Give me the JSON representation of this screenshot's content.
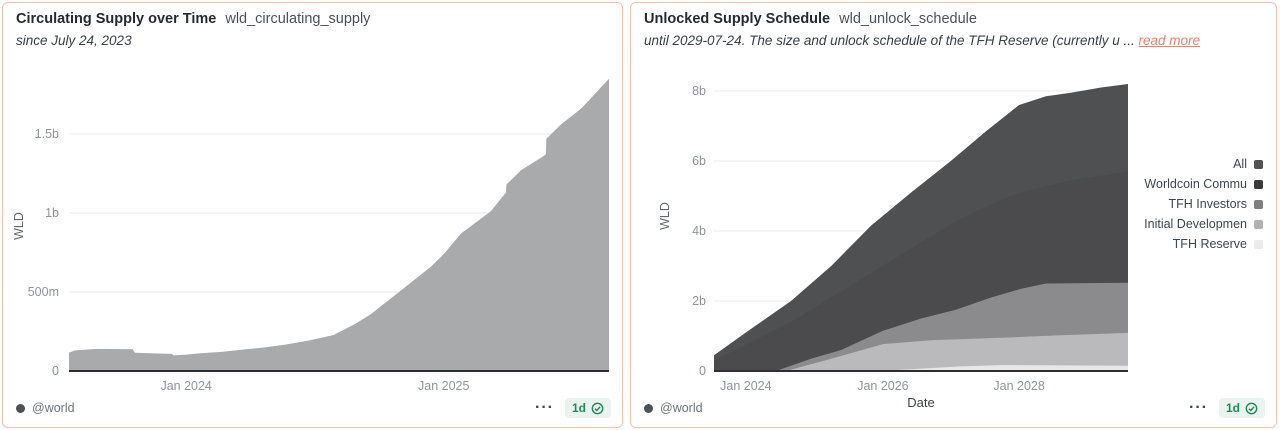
{
  "page": {
    "background": "#ffffff",
    "panel_border": "#f4c0ac"
  },
  "panels": [
    {
      "title": "Circulating Supply over Time",
      "query": "wld_circulating_supply",
      "subtitle": "since July 24, 2023",
      "footer": {
        "author": "@world",
        "refresh": "1d",
        "more_icon": "···"
      }
    },
    {
      "title": "Unlocked Supply Schedule",
      "query": "wld_unlock_schedule",
      "subtitle": "until 2029-07-24. The size and unlock schedule of the TFH Reserve (currently u ...",
      "read_more": "read more",
      "footer": {
        "author": "@world",
        "refresh": "1d",
        "more_icon": "···"
      }
    }
  ],
  "chart_data": [
    {
      "type": "area",
      "title": "Circulating Supply over Time",
      "query": "wld_circulating_supply",
      "ylabel": "WLD",
      "xlabel": "",
      "unit": "billions of WLD",
      "ylim": [
        0,
        1.87
      ],
      "x_range": [
        "2023-07-24",
        "2025-08-01"
      ],
      "grid": "horizontal",
      "legend_position": "none",
      "y_ticks": [
        {
          "v": 0,
          "label": "0"
        },
        {
          "v": 0.5,
          "label": "500m"
        },
        {
          "v": 1,
          "label": "1b"
        },
        {
          "v": 1.5,
          "label": "1.5b"
        }
      ],
      "x_ticks": [
        {
          "t": 0.217,
          "label": "Jan 2024"
        },
        {
          "t": 0.694,
          "label": "Jan 2025"
        }
      ],
      "series": [
        {
          "name": "Circulating Supply",
          "color": "#a9aaac",
          "points": [
            [
              0,
              0.115
            ],
            [
              0.01,
              0.13
            ],
            [
              0.05,
              0.14
            ],
            [
              0.118,
              0.138
            ],
            [
              0.122,
              0.115
            ],
            [
              0.15,
              0.112
            ],
            [
              0.19,
              0.108
            ],
            [
              0.194,
              0.099
            ],
            [
              0.217,
              0.104
            ],
            [
              0.244,
              0.112
            ],
            [
              0.285,
              0.122
            ],
            [
              0.328,
              0.138
            ],
            [
              0.359,
              0.148
            ],
            [
              0.402,
              0.168
            ],
            [
              0.444,
              0.193
            ],
            [
              0.49,
              0.228
            ],
            [
              0.531,
              0.3
            ],
            [
              0.559,
              0.36
            ],
            [
              0.615,
              0.51
            ],
            [
              0.67,
              0.66
            ],
            [
              0.694,
              0.74
            ],
            [
              0.726,
              0.87
            ],
            [
              0.781,
              1.01
            ],
            [
              0.809,
              1.13
            ],
            [
              0.81,
              1.18
            ],
            [
              0.837,
              1.27
            ],
            [
              0.874,
              1.35
            ],
            [
              0.883,
              1.37
            ],
            [
              0.884,
              1.47
            ],
            [
              0.911,
              1.56
            ],
            [
              0.948,
              1.66
            ],
            [
              0.976,
              1.76
            ],
            [
              0.981,
              1.78
            ],
            [
              1,
              1.85
            ]
          ]
        }
      ]
    },
    {
      "type": "area",
      "title": "Unlocked Supply Schedule",
      "query": "wld_unlock_schedule",
      "ylabel": "WLD",
      "xlabel": "Date",
      "unit": "billions of WLD",
      "ylim": [
        0,
        8.8
      ],
      "x_range": [
        "2023-07-24",
        "2029-07-24"
      ],
      "grid": "horizontal",
      "legend_position": "right",
      "y_ticks": [
        {
          "v": 0,
          "label": "0"
        },
        {
          "v": 2,
          "label": "2b"
        },
        {
          "v": 4,
          "label": "4b"
        },
        {
          "v": 6,
          "label": "6b"
        },
        {
          "v": 8,
          "label": "8b"
        }
      ],
      "x_ticks": [
        {
          "t": 0.077,
          "label": "Jan 2024"
        },
        {
          "t": 0.408,
          "label": "Jan 2026"
        },
        {
          "t": 0.737,
          "label": "Jan 2028"
        }
      ],
      "legend": [
        {
          "label": "All",
          "color": "#525254"
        },
        {
          "label": "Worldcoin Commu",
          "color": "#3a3a3c"
        },
        {
          "label": "TFH Investors",
          "color": "#7f7f81"
        },
        {
          "label": "Initial Developmen",
          "color": "#b2b2b4"
        },
        {
          "label": "TFH Reserve",
          "color": "#ebebec"
        }
      ],
      "series": [
        {
          "name": "All",
          "color": "#4f5052",
          "points": [
            [
              0,
              0.45
            ],
            [
              0.077,
              1.1
            ],
            [
              0.186,
              2.0
            ],
            [
              0.283,
              3.0
            ],
            [
              0.379,
              4.15
            ],
            [
              0.476,
              5.1
            ],
            [
              0.572,
              6.0
            ],
            [
              0.657,
              6.85
            ],
            [
              0.737,
              7.6
            ],
            [
              0.802,
              7.85
            ],
            [
              0.862,
              7.95
            ],
            [
              0.935,
              8.1
            ],
            [
              1,
              8.2
            ]
          ]
        },
        {
          "name": "Worldcoin Community",
          "color": "#4b4b4d",
          "points": [
            [
              0,
              0.3
            ],
            [
              0.077,
              0.75
            ],
            [
              0.186,
              1.4
            ],
            [
              0.283,
              2.1
            ],
            [
              0.379,
              2.8
            ],
            [
              0.476,
              3.5
            ],
            [
              0.572,
              4.2
            ],
            [
              0.657,
              4.7
            ],
            [
              0.737,
              5.1
            ],
            [
              0.862,
              5.45
            ],
            [
              1,
              5.7
            ]
          ]
        },
        {
          "name": "TFH Investors",
          "color": "#8b8b8d",
          "points": [
            [
              0.15,
              0
            ],
            [
              0.234,
              0.35
            ],
            [
              0.307,
              0.6
            ],
            [
              0.408,
              1.15
            ],
            [
              0.5,
              1.5
            ],
            [
              0.584,
              1.75
            ],
            [
              0.669,
              2.1
            ],
            [
              0.742,
              2.35
            ],
            [
              0.802,
              2.5
            ],
            [
              1,
              2.52
            ]
          ]
        },
        {
          "name": "Initial Development",
          "color": "#bababc",
          "points": [
            [
              0.174,
              0
            ],
            [
              0.283,
              0.35
            ],
            [
              0.408,
              0.77
            ],
            [
              0.524,
              0.88
            ],
            [
              0.693,
              0.95
            ],
            [
              0.838,
              1.02
            ],
            [
              1,
              1.09
            ]
          ]
        },
        {
          "name": "TFH Reserve",
          "color": "#e7e7e8",
          "points": [
            [
              0.403,
              0
            ],
            [
              0.5,
              0.07
            ],
            [
              0.597,
              0.13
            ],
            [
              0.693,
              0.17
            ],
            [
              0.838,
              0.16
            ],
            [
              1,
              0.15
            ]
          ]
        }
      ]
    }
  ]
}
